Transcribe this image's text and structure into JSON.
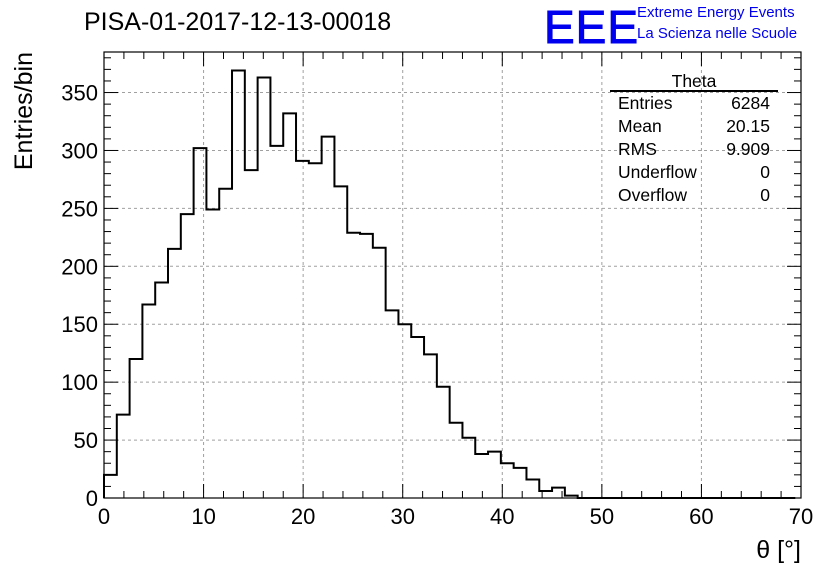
{
  "header": {
    "title": "PISA-01-2017-12-13-00018",
    "logo_text": "EEE",
    "tagline_1": "Extreme Energy Events",
    "tagline_2": "La Scienza nelle Scuole"
  },
  "stats_box": {
    "title": "Theta",
    "rows": [
      {
        "label": "Entries",
        "value": "6284"
      },
      {
        "label": "Mean",
        "value": "20.15"
      },
      {
        "label": "RMS",
        "value": "9.909"
      },
      {
        "label": "Underflow",
        "value": "0"
      },
      {
        "label": "Overflow",
        "value": "0"
      }
    ]
  },
  "colors": {
    "line": "#000000",
    "grid": "#a0a0a0",
    "logo": "#0000ee"
  },
  "chart_data": {
    "type": "histogram",
    "title": "PISA-01-2017-12-13-00018",
    "xlabel": "θ [°]",
    "ylabel": "Entries/bin",
    "xlim": [
      0,
      70
    ],
    "ylim": [
      0,
      385
    ],
    "grid": true,
    "bin_edges_start": 0,
    "bin_width": 1.2857,
    "values": [
      20,
      72,
      120,
      167,
      186,
      215,
      245,
      302,
      249,
      267,
      369,
      283,
      363,
      304,
      332,
      291,
      289,
      312,
      269,
      229,
      228,
      216,
      162,
      150,
      139,
      124,
      96,
      65,
      52,
      38,
      40,
      30,
      26,
      16,
      6,
      9,
      2,
      0,
      0,
      0,
      0,
      0,
      0,
      0,
      0,
      0,
      0,
      0,
      0,
      0,
      0,
      0,
      0,
      0
    ],
    "x_ticks": [
      "0",
      "10",
      "20",
      "30",
      "40",
      "50",
      "60",
      "70"
    ],
    "y_ticks": [
      "0",
      "50",
      "100",
      "150",
      "200",
      "250",
      "300",
      "350"
    ]
  }
}
